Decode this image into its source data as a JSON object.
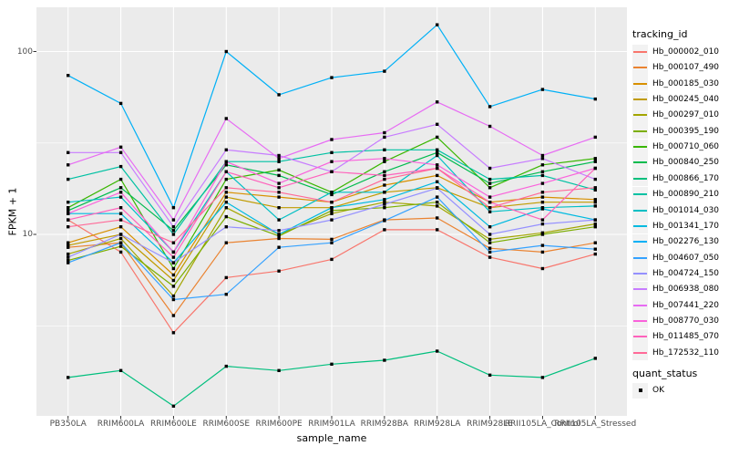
{
  "figure": {
    "y_axis_title": "FPKM + 1",
    "x_axis_title": "sample_name"
  },
  "legend": {
    "tracking_title": "tracking_id",
    "quant_title": "quant_status",
    "quant_items": [
      {
        "label": "OK",
        "marker": "black-square"
      }
    ]
  },
  "chart_data": {
    "type": "line",
    "xlabel": "sample_name",
    "ylabel": "FPKM + 1",
    "y_scale": "log10",
    "ylim": [
      1.03,
      175
    ],
    "y_major_breaks": [
      100,
      10
    ],
    "y_minor_breaks": [
      31.6,
      3.16
    ],
    "grid": true,
    "panel_bg": "#EBEBEB",
    "grid_color": "#FFFFFF",
    "axis_text_color": "#4D4D4D",
    "point_color": "#000000",
    "point_shape": "square",
    "legend_position": "right",
    "categories": [
      "PB350LA",
      "RRIM600LA",
      "RRIM600LE",
      "RRIM600SE",
      "RRIM600PE",
      "RRIM901LA",
      "RRIM928BA",
      "RRIM928LA",
      "RRIM928LE",
      "RRII105LA_Control",
      "RRII105LA_Stressed"
    ],
    "series": [
      {
        "name": "Hb_000002_010",
        "color": "#F8766D",
        "values": [
          12.0,
          8.0,
          2.9,
          5.8,
          6.3,
          7.3,
          10.6,
          10.6,
          7.5,
          6.5,
          7.8
        ]
      },
      {
        "name": "Hb_000107_490",
        "color": "#EA8331",
        "values": [
          8.5,
          9.0,
          3.6,
          9.0,
          9.5,
          9.4,
          12.0,
          12.3,
          8.4,
          8.0,
          9.0
        ]
      },
      {
        "name": "Hb_000185_030",
        "color": "#D89000",
        "values": [
          9.0,
          11.0,
          6.0,
          17.0,
          16.0,
          15.0,
          18.6,
          21.0,
          15.0,
          16.0,
          15.5
        ]
      },
      {
        "name": "Hb_000245_040",
        "color": "#C09B00",
        "values": [
          8.7,
          10.0,
          5.6,
          16.0,
          14.0,
          14.0,
          17.0,
          18.0,
          14.0,
          15.0,
          15.0
        ]
      },
      {
        "name": "Hb_000297_010",
        "color": "#A3A500",
        "values": [
          7.8,
          9.5,
          4.6,
          14.0,
          10.0,
          13.0,
          15.0,
          14.3,
          9.4,
          10.2,
          11.4
        ]
      },
      {
        "name": "Hb_000395_190",
        "color": "#7CAE00",
        "values": [
          7.2,
          8.6,
          5.2,
          12.5,
          9.8,
          13.5,
          14.0,
          15.0,
          9.0,
          10.0,
          11.0
        ]
      },
      {
        "name": "Hb_000710_060",
        "color": "#39B600",
        "values": [
          14.0,
          20.0,
          6.5,
          20.0,
          22.5,
          17.0,
          25.0,
          34.0,
          18.0,
          24.0,
          26.0
        ]
      },
      {
        "name": "Hb_000840_250",
        "color": "#00BB4E",
        "values": [
          13.5,
          18.0,
          10.5,
          24.0,
          21.0,
          16.5,
          22.0,
          28.0,
          19.0,
          22.0,
          25.0
        ]
      },
      {
        "name": "Hb_000866_170",
        "color": "#00BF7D",
        "values": [
          1.65,
          1.8,
          1.15,
          1.9,
          1.8,
          1.95,
          2.05,
          2.3,
          1.7,
          1.65,
          2.1
        ]
      },
      {
        "name": "Hb_000890_210",
        "color": "#00C1A3",
        "values": [
          20.0,
          23.5,
          10.0,
          25.0,
          25.0,
          28.0,
          29.0,
          29.0,
          20.0,
          21.0,
          17.5
        ]
      },
      {
        "name": "Hb_001014_030",
        "color": "#00BFC4",
        "values": [
          15.0,
          16.0,
          8.0,
          22.0,
          12.0,
          17.0,
          17.0,
          27.0,
          13.3,
          14.0,
          14.3
        ]
      },
      {
        "name": "Hb_001341_170",
        "color": "#00BAE0",
        "values": [
          13.0,
          13.0,
          7.0,
          15.0,
          10.0,
          14.0,
          15.5,
          19.4,
          11.0,
          13.8,
          12.0
        ]
      },
      {
        "name": "Hb_002276_130",
        "color": "#00B0F6",
        "values": [
          74.0,
          52.0,
          14.0,
          100.0,
          58.0,
          72.0,
          78.0,
          140.0,
          50.0,
          62.0,
          55.0
        ]
      },
      {
        "name": "Hb_004607_050",
        "color": "#35A2FF",
        "values": [
          7.0,
          9.0,
          4.4,
          4.7,
          8.5,
          9.0,
          11.9,
          16.0,
          8.0,
          8.7,
          8.3
        ]
      },
      {
        "name": "Hb_004724_150",
        "color": "#9590FF",
        "values": [
          7.5,
          10.0,
          7.0,
          11.0,
          10.5,
          12.0,
          14.6,
          17.9,
          10.0,
          11.4,
          12.0
        ]
      },
      {
        "name": "Hb_006938_080",
        "color": "#C77CFF",
        "values": [
          28.0,
          28.0,
          11.0,
          29.0,
          27.0,
          22.0,
          34.0,
          40.0,
          23.0,
          26.0,
          20.0
        ]
      },
      {
        "name": "Hb_007441_220",
        "color": "#E76BF3",
        "values": [
          24.0,
          30.0,
          12.0,
          43.0,
          26.0,
          33.0,
          36.0,
          53.0,
          39.0,
          27.0,
          34.0
        ]
      },
      {
        "name": "Hb_008770_030",
        "color": "#FA62DB",
        "values": [
          13.0,
          17.0,
          8.0,
          25.0,
          19.0,
          25.0,
          26.0,
          24.0,
          16.0,
          19.0,
          23.0
        ]
      },
      {
        "name": "Hb_011485_070",
        "color": "#FF62BC",
        "values": [
          12.0,
          14.0,
          7.5,
          22.0,
          18.0,
          22.0,
          21.0,
          23.0,
          15.0,
          12.0,
          23.0
        ]
      },
      {
        "name": "Hb_172532_110",
        "color": "#FF6A98",
        "values": [
          11.0,
          12.0,
          9.0,
          18.0,
          17.0,
          15.0,
          20.0,
          23.0,
          14.0,
          17.0,
          18.0
        ]
      }
    ]
  }
}
